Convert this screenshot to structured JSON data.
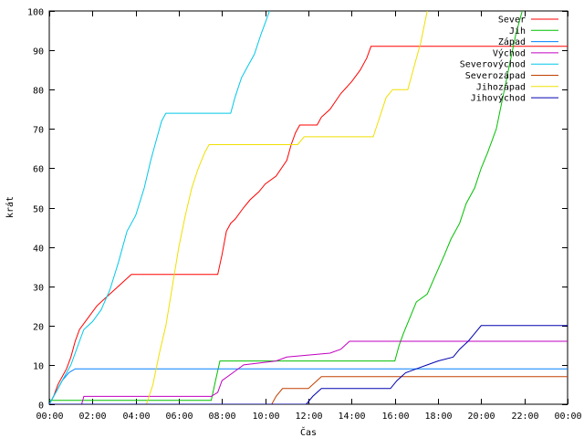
{
  "chart_data": {
    "type": "line",
    "xlabel": "Čas",
    "ylabel": "krát",
    "xlim": [
      0,
      24
    ],
    "ylim": [
      0,
      100
    ],
    "x_ticks": [
      {
        "value": 0,
        "label": "00:00"
      },
      {
        "value": 2,
        "label": "02:00"
      },
      {
        "value": 4,
        "label": "04:00"
      },
      {
        "value": 6,
        "label": "06:00"
      },
      {
        "value": 8,
        "label": "08:00"
      },
      {
        "value": 10,
        "label": "10:00"
      },
      {
        "value": 12,
        "label": "12:00"
      },
      {
        "value": 14,
        "label": "14:00"
      },
      {
        "value": 16,
        "label": "16:00"
      },
      {
        "value": 18,
        "label": "18:00"
      },
      {
        "value": 20,
        "label": "20:00"
      },
      {
        "value": 22,
        "label": "22:00"
      },
      {
        "value": 24,
        "label": "00:00"
      }
    ],
    "y_ticks": [
      0,
      10,
      20,
      30,
      40,
      50,
      60,
      70,
      80,
      90,
      100
    ],
    "grid": false,
    "legend_position": "top-right",
    "series": [
      {
        "name": "Sever",
        "color": "#ff0000",
        "points": [
          [
            0,
            0
          ],
          [
            0.2,
            2
          ],
          [
            0.4,
            5
          ],
          [
            0.6,
            7
          ],
          [
            0.8,
            9
          ],
          [
            1.0,
            12
          ],
          [
            1.2,
            16
          ],
          [
            1.4,
            19
          ],
          [
            1.8,
            22
          ],
          [
            2.2,
            25
          ],
          [
            2.6,
            27
          ],
          [
            3.0,
            29
          ],
          [
            3.4,
            31
          ],
          [
            3.8,
            33
          ],
          [
            7.8,
            33
          ],
          [
            8.0,
            38
          ],
          [
            8.2,
            44
          ],
          [
            8.4,
            46
          ],
          [
            8.6,
            47
          ],
          [
            9.0,
            50
          ],
          [
            9.3,
            52
          ],
          [
            9.7,
            54
          ],
          [
            10.0,
            56
          ],
          [
            10.5,
            58
          ],
          [
            11.0,
            62
          ],
          [
            11.2,
            66
          ],
          [
            11.4,
            69
          ],
          [
            11.6,
            71
          ],
          [
            12.4,
            71
          ],
          [
            12.6,
            73
          ],
          [
            13.0,
            75
          ],
          [
            13.5,
            79
          ],
          [
            14.0,
            82
          ],
          [
            14.4,
            85
          ],
          [
            14.7,
            88
          ],
          [
            14.9,
            91
          ],
          [
            24,
            91
          ]
        ]
      },
      {
        "name": "Jih",
        "color": "#00c000",
        "points": [
          [
            0,
            1
          ],
          [
            7.5,
            1
          ],
          [
            7.7,
            6
          ],
          [
            7.9,
            11
          ],
          [
            16.0,
            11
          ],
          [
            16.2,
            15
          ],
          [
            16.4,
            18
          ],
          [
            16.7,
            22
          ],
          [
            17.0,
            26
          ],
          [
            17.5,
            28
          ],
          [
            17.9,
            33
          ],
          [
            18.3,
            38
          ],
          [
            18.6,
            42
          ],
          [
            19.0,
            46
          ],
          [
            19.3,
            51
          ],
          [
            19.7,
            55
          ],
          [
            20.0,
            60
          ],
          [
            20.3,
            64
          ],
          [
            20.7,
            70
          ],
          [
            21.0,
            78
          ],
          [
            21.3,
            86
          ],
          [
            21.6,
            94
          ],
          [
            21.9,
            100
          ]
        ]
      },
      {
        "name": "Západ",
        "color": "#0080ff",
        "points": [
          [
            0,
            0
          ],
          [
            0.3,
            3
          ],
          [
            0.6,
            6
          ],
          [
            0.9,
            8
          ],
          [
            1.2,
            9
          ],
          [
            24,
            9
          ]
        ]
      },
      {
        "name": "Východ",
        "color": "#c000c0",
        "points": [
          [
            0,
            0
          ],
          [
            1.5,
            0
          ],
          [
            1.6,
            2
          ],
          [
            7.5,
            2
          ],
          [
            7.8,
            3
          ],
          [
            8.0,
            6
          ],
          [
            8.5,
            8
          ],
          [
            9.0,
            10
          ],
          [
            10.5,
            11
          ],
          [
            11.0,
            12
          ],
          [
            13.0,
            13
          ],
          [
            13.5,
            14
          ],
          [
            13.9,
            16
          ],
          [
            24,
            16
          ]
        ]
      },
      {
        "name": "Severovýchod",
        "color": "#00c8e8",
        "points": [
          [
            0,
            0
          ],
          [
            0.3,
            3
          ],
          [
            0.6,
            6
          ],
          [
            1.0,
            10
          ],
          [
            1.4,
            16
          ],
          [
            1.6,
            19
          ],
          [
            2.0,
            21
          ],
          [
            2.4,
            24
          ],
          [
            2.8,
            29
          ],
          [
            3.2,
            36
          ],
          [
            3.6,
            44
          ],
          [
            4.0,
            48
          ],
          [
            4.4,
            55
          ],
          [
            4.7,
            62
          ],
          [
            5.0,
            68
          ],
          [
            5.2,
            72
          ],
          [
            5.4,
            74
          ],
          [
            8.4,
            74
          ],
          [
            8.6,
            78
          ],
          [
            8.9,
            83
          ],
          [
            9.2,
            86
          ],
          [
            9.5,
            89
          ],
          [
            9.8,
            94
          ],
          [
            10.0,
            97
          ],
          [
            10.2,
            100
          ]
        ]
      },
      {
        "name": "Severozápad",
        "color": "#c04000",
        "points": [
          [
            0,
            0
          ],
          [
            10.3,
            0
          ],
          [
            10.5,
            2
          ],
          [
            10.8,
            4
          ],
          [
            12.0,
            4
          ],
          [
            12.6,
            7
          ],
          [
            24,
            7
          ]
        ]
      },
      {
        "name": "Jihozápad",
        "color": "#f0e000",
        "points": [
          [
            0,
            0
          ],
          [
            4.5,
            0
          ],
          [
            4.8,
            5
          ],
          [
            5.1,
            13
          ],
          [
            5.4,
            20
          ],
          [
            5.7,
            30
          ],
          [
            6.0,
            40
          ],
          [
            6.3,
            48
          ],
          [
            6.6,
            55
          ],
          [
            6.9,
            60
          ],
          [
            7.2,
            64
          ],
          [
            7.4,
            66
          ],
          [
            11.5,
            66
          ],
          [
            11.8,
            68
          ],
          [
            15.0,
            68
          ],
          [
            15.3,
            73
          ],
          [
            15.6,
            78
          ],
          [
            15.9,
            80
          ],
          [
            16.6,
            80
          ],
          [
            16.9,
            86
          ],
          [
            17.2,
            92
          ],
          [
            17.5,
            100
          ]
        ]
      },
      {
        "name": "Jihovýchod",
        "color": "#0000b0",
        "points": [
          [
            0,
            0
          ],
          [
            11.9,
            0
          ],
          [
            12.2,
            2
          ],
          [
            12.6,
            4
          ],
          [
            15.8,
            4
          ],
          [
            16.1,
            6
          ],
          [
            16.5,
            8
          ],
          [
            17.0,
            9
          ],
          [
            17.5,
            10
          ],
          [
            18.0,
            11
          ],
          [
            18.7,
            12
          ],
          [
            19.0,
            14
          ],
          [
            19.4,
            16
          ],
          [
            19.7,
            18
          ],
          [
            20.0,
            20
          ],
          [
            24,
            20
          ]
        ]
      }
    ]
  }
}
